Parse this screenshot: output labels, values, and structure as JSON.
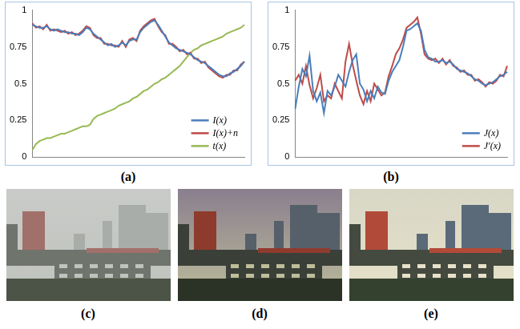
{
  "chart_data": [
    {
      "type": "line",
      "label": "(a)",
      "categories": [
        null,
        null,
        null,
        null,
        null,
        null,
        null,
        null,
        null,
        null,
        null,
        null,
        null,
        null,
        null,
        null,
        null,
        null,
        null,
        null,
        null,
        null,
        null,
        null,
        null,
        null,
        null,
        null,
        null,
        null,
        null,
        null,
        null,
        null,
        null,
        null,
        null,
        null,
        null,
        null,
        null,
        null,
        null,
        null,
        null,
        null,
        null,
        null,
        null,
        null,
        null,
        null,
        null,
        null,
        null,
        null,
        null,
        null,
        null,
        null
      ],
      "series": [
        {
          "name": "I(x)",
          "color": "#4a7ebb",
          "values": [
            0.9,
            0.89,
            0.88,
            0.88,
            0.89,
            0.87,
            0.86,
            0.87,
            0.86,
            0.85,
            0.85,
            0.84,
            0.84,
            0.83,
            0.85,
            0.88,
            0.87,
            0.84,
            0.82,
            0.8,
            0.78,
            0.76,
            0.77,
            0.75,
            0.76,
            0.78,
            0.76,
            0.79,
            0.8,
            0.8,
            0.85,
            0.88,
            0.9,
            0.92,
            0.93,
            0.9,
            0.86,
            0.82,
            0.78,
            0.76,
            0.74,
            0.73,
            0.72,
            0.71,
            0.7,
            0.68,
            0.66,
            0.65,
            0.64,
            0.62,
            0.6,
            0.58,
            0.56,
            0.55,
            0.55,
            0.57,
            0.58,
            0.6,
            0.62,
            0.65
          ]
        },
        {
          "name": "I(x)+n",
          "color": "#be4b48",
          "values": [
            0.91,
            0.88,
            0.89,
            0.87,
            0.9,
            0.86,
            0.87,
            0.86,
            0.85,
            0.86,
            0.84,
            0.85,
            0.83,
            0.84,
            0.86,
            0.89,
            0.88,
            0.83,
            0.81,
            0.81,
            0.77,
            0.77,
            0.76,
            0.76,
            0.75,
            0.79,
            0.75,
            0.8,
            0.81,
            0.79,
            0.86,
            0.89,
            0.91,
            0.93,
            0.94,
            0.89,
            0.85,
            0.83,
            0.77,
            0.77,
            0.75,
            0.72,
            0.73,
            0.7,
            0.71,
            0.67,
            0.67,
            0.64,
            0.65,
            0.61,
            0.59,
            0.57,
            0.55,
            0.54,
            0.56,
            0.56,
            0.59,
            0.59,
            0.63,
            0.65
          ]
        },
        {
          "name": "t(x)",
          "color": "#98b954",
          "values": [
            0.05,
            0.09,
            0.11,
            0.12,
            0.13,
            0.13,
            0.14,
            0.15,
            0.16,
            0.16,
            0.17,
            0.18,
            0.19,
            0.2,
            0.21,
            0.21,
            0.22,
            0.26,
            0.28,
            0.29,
            0.3,
            0.31,
            0.32,
            0.33,
            0.35,
            0.36,
            0.37,
            0.38,
            0.4,
            0.41,
            0.43,
            0.45,
            0.46,
            0.48,
            0.5,
            0.51,
            0.53,
            0.54,
            0.56,
            0.58,
            0.6,
            0.62,
            0.65,
            0.68,
            0.71,
            0.73,
            0.74,
            0.76,
            0.77,
            0.78,
            0.79,
            0.8,
            0.81,
            0.82,
            0.84,
            0.85,
            0.86,
            0.87,
            0.88,
            0.9
          ]
        }
      ],
      "ylim": [
        0,
        1
      ],
      "yticks": [
        0,
        0.25,
        0.5,
        0.75,
        1
      ],
      "grid": false,
      "legend": "lower right",
      "tick_labels": "y"
    },
    {
      "type": "line",
      "label": "(b)",
      "categories": [
        null,
        null,
        null,
        null,
        null,
        null,
        null,
        null,
        null,
        null,
        null,
        null,
        null,
        null,
        null,
        null,
        null,
        null,
        null,
        null,
        null,
        null,
        null,
        null,
        null,
        null,
        null,
        null,
        null,
        null,
        null,
        null,
        null,
        null,
        null,
        null,
        null,
        null,
        null,
        null,
        null,
        null,
        null,
        null,
        null,
        null,
        null,
        null,
        null,
        null,
        null,
        null,
        null,
        null,
        null,
        null,
        null,
        null,
        null,
        null
      ],
      "series": [
        {
          "name": "J(x)",
          "color": "#4a7ebb",
          "values": [
            0.33,
            0.48,
            0.6,
            0.55,
            0.69,
            0.45,
            0.38,
            0.44,
            0.3,
            0.45,
            0.42,
            0.48,
            0.56,
            0.52,
            0.48,
            0.58,
            0.66,
            0.7,
            0.5,
            0.46,
            0.38,
            0.45,
            0.4,
            0.48,
            0.44,
            0.43,
            0.52,
            0.58,
            0.62,
            0.66,
            0.75,
            0.86,
            0.87,
            0.89,
            0.91,
            0.86,
            0.73,
            0.68,
            0.67,
            0.65,
            0.65,
            0.66,
            0.64,
            0.65,
            0.63,
            0.6,
            0.59,
            0.58,
            0.57,
            0.55,
            0.53,
            0.52,
            0.5,
            0.49,
            0.5,
            0.51,
            0.53,
            0.55,
            0.56,
            0.58
          ]
        },
        {
          "name": "J'(x)",
          "color": "#be4b48",
          "values": [
            0.52,
            0.56,
            0.5,
            0.62,
            0.49,
            0.4,
            0.47,
            0.56,
            0.38,
            0.42,
            0.4,
            0.5,
            0.45,
            0.4,
            0.65,
            0.77,
            0.63,
            0.52,
            0.42,
            0.36,
            0.45,
            0.38,
            0.5,
            0.46,
            0.42,
            0.44,
            0.55,
            0.62,
            0.7,
            0.74,
            0.8,
            0.88,
            0.9,
            0.92,
            0.95,
            0.84,
            0.7,
            0.67,
            0.66,
            0.67,
            0.64,
            0.67,
            0.63,
            0.66,
            0.62,
            0.61,
            0.58,
            0.59,
            0.56,
            0.56,
            0.52,
            0.53,
            0.51,
            0.48,
            0.51,
            0.5,
            0.52,
            0.56,
            0.55,
            0.62
          ]
        }
      ],
      "ylim": [
        0,
        1
      ],
      "yticks": [
        0,
        0.25,
        0.5,
        0.75,
        1
      ],
      "grid": false,
      "legend": "lower right",
      "tick_labels": "y"
    }
  ],
  "images": [
    {
      "label": "(c)"
    },
    {
      "label": "(d)"
    },
    {
      "label": "(e)"
    }
  ]
}
